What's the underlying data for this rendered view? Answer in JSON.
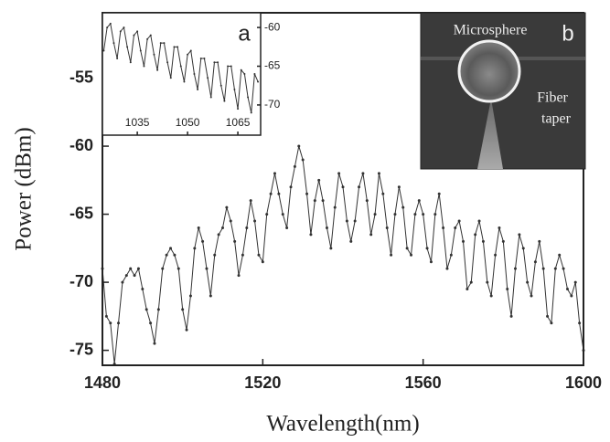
{
  "chart_data": [
    {
      "type": "line",
      "xlabel": "Wavelength(nm)",
      "ylabel": "Power (dBm)",
      "color": "#333333",
      "xlim": [
        1480,
        1600
      ],
      "ylim": [
        -76.1,
        -50.2
      ],
      "xticks": [
        1480,
        1520,
        1560,
        1600
      ],
      "yticks": [
        -55,
        -60,
        -65,
        -70,
        -75
      ],
      "y_axis_side": "left",
      "x": [
        1480,
        1481,
        1482,
        1483,
        1484,
        1485,
        1486,
        1487,
        1488,
        1489,
        1490,
        1491,
        1492,
        1493,
        1494,
        1495,
        1496,
        1497,
        1498,
        1499,
        1500,
        1501,
        1502,
        1503,
        1504,
        1505,
        1506,
        1507,
        1508,
        1509,
        1510,
        1511,
        1512,
        1513,
        1514,
        1515,
        1516,
        1517,
        1518,
        1519,
        1520,
        1521,
        1522,
        1523,
        1524,
        1525,
        1526,
        1527,
        1528,
        1529,
        1530,
        1531,
        1532,
        1533,
        1534,
        1535,
        1536,
        1537,
        1538,
        1539,
        1540,
        1541,
        1542,
        1543,
        1544,
        1545,
        1546,
        1547,
        1548,
        1549,
        1550,
        1551,
        1552,
        1553,
        1554,
        1555,
        1556,
        1557,
        1558,
        1559,
        1560,
        1561,
        1562,
        1563,
        1564,
        1565,
        1566,
        1567,
        1568,
        1569,
        1570,
        1571,
        1572,
        1573,
        1574,
        1575,
        1576,
        1577,
        1578,
        1579,
        1580,
        1581,
        1582,
        1583,
        1584,
        1585,
        1586,
        1587,
        1588,
        1589,
        1590,
        1591,
        1592,
        1593,
        1594,
        1595,
        1596,
        1597,
        1598,
        1599,
        1600
      ],
      "values": [
        -69,
        -72.5,
        -73,
        -76,
        -73,
        -70,
        -69.5,
        -69,
        -69.5,
        -69,
        -70.5,
        -72,
        -73,
        -74.5,
        -72,
        -69,
        -68,
        -67.5,
        -68,
        -69,
        -72,
        -73.5,
        -71,
        -67.5,
        -66,
        -67,
        -69,
        -71,
        -68,
        -66.5,
        -66,
        -64.5,
        -65.5,
        -67,
        -69.5,
        -68,
        -66,
        -64,
        -65.5,
        -68,
        -68.5,
        -65,
        -63.5,
        -62,
        -63.5,
        -65,
        -66,
        -63,
        -61.5,
        -60,
        -61,
        -63.5,
        -66.5,
        -64,
        -62.5,
        -64,
        -66,
        -67.5,
        -64.5,
        -62,
        -63,
        -65.5,
        -67,
        -65.5,
        -63,
        -62,
        -64,
        -66.5,
        -65,
        -62,
        -63.5,
        -66,
        -68,
        -65,
        -63,
        -64.5,
        -67.5,
        -68,
        -65,
        -64,
        -65,
        -67.5,
        -68.5,
        -65,
        -63.5,
        -66,
        -69,
        -68,
        -66,
        -65.5,
        -67,
        -70.5,
        -70,
        -66.5,
        -65.5,
        -67,
        -70,
        -71,
        -68,
        -66,
        -67,
        -70.5,
        -72.5,
        -69,
        -66.5,
        -67.5,
        -70,
        -71,
        -68.5,
        -67,
        -69,
        -72.5,
        -73,
        -69,
        -68,
        -69,
        -70.5,
        -71,
        -70,
        -73,
        -75
      ]
    },
    {
      "type": "line",
      "panel_label": "a",
      "color": "#333333",
      "xlim": [
        1024.6,
        1071.8
      ],
      "ylim": [
        -73.9,
        -58.1
      ],
      "xticks": [
        1035,
        1050,
        1065
      ],
      "yticks": [
        -60,
        -65,
        -70
      ],
      "y_axis_side": "right",
      "x": [
        1025,
        1026,
        1027,
        1028,
        1029,
        1030,
        1031,
        1032,
        1033,
        1034,
        1035,
        1036,
        1037,
        1038,
        1039,
        1040,
        1041,
        1042,
        1043,
        1044,
        1045,
        1046,
        1047,
        1048,
        1049,
        1050,
        1051,
        1052,
        1053,
        1054,
        1055,
        1056,
        1057,
        1058,
        1059,
        1060,
        1061,
        1062,
        1063,
        1064,
        1065,
        1066,
        1067,
        1068,
        1069,
        1070,
        1071
      ],
      "values": [
        -63,
        -60,
        -59.5,
        -62,
        -64,
        -60.5,
        -60,
        -62.5,
        -64.5,
        -61,
        -60.5,
        -63,
        -65,
        -61.5,
        -61,
        -63.5,
        -65.5,
        -62,
        -62,
        -64.5,
        -66.5,
        -62.5,
        -62.5,
        -65,
        -67,
        -63.5,
        -63,
        -66,
        -68,
        -64,
        -64,
        -66.5,
        -69,
        -64.5,
        -64.5,
        -67.5,
        -69.5,
        -65,
        -65,
        -68,
        -70.5,
        -65.5,
        -66,
        -69,
        -71,
        -66,
        -67
      ]
    }
  ],
  "inset_b": {
    "label": "b",
    "microsphere": "Microsphere",
    "fiber_line1": "Fiber",
    "fiber_line2": "taper"
  }
}
